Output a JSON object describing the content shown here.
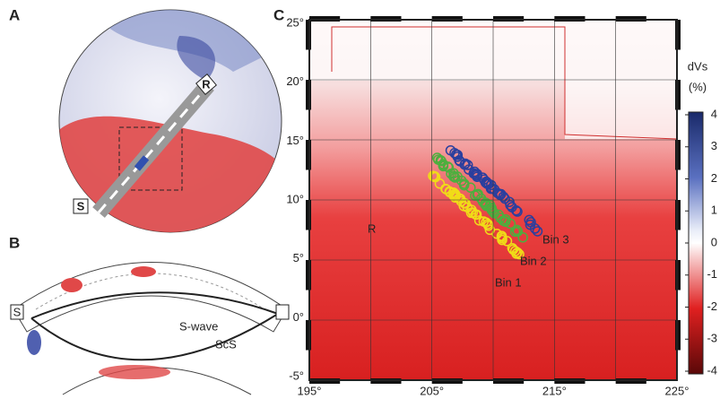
{
  "panels": {
    "a": {
      "label": "A",
      "source_label": "S",
      "receiver_label": "R"
    },
    "b": {
      "label": "B",
      "source_label": "S",
      "wave_labels": [
        "S-wave",
        "ScS"
      ]
    },
    "c": {
      "label": "C",
      "region_label": "R",
      "bins": [
        "Bin 1",
        "Bin 2",
        "Bin 3"
      ],
      "x_ticks": [
        "195°",
        "205°",
        "215°",
        "225°"
      ],
      "y_ticks": [
        "25°",
        "20°",
        "15°",
        "10°",
        "5°",
        "0°",
        "-5°"
      ]
    }
  },
  "colorbar": {
    "title_lines": [
      "dVs",
      "(%)"
    ],
    "ticks": [
      "4",
      "3",
      "2",
      "1",
      "0",
      "-1",
      "-2",
      "-3",
      "-4"
    ]
  }
}
